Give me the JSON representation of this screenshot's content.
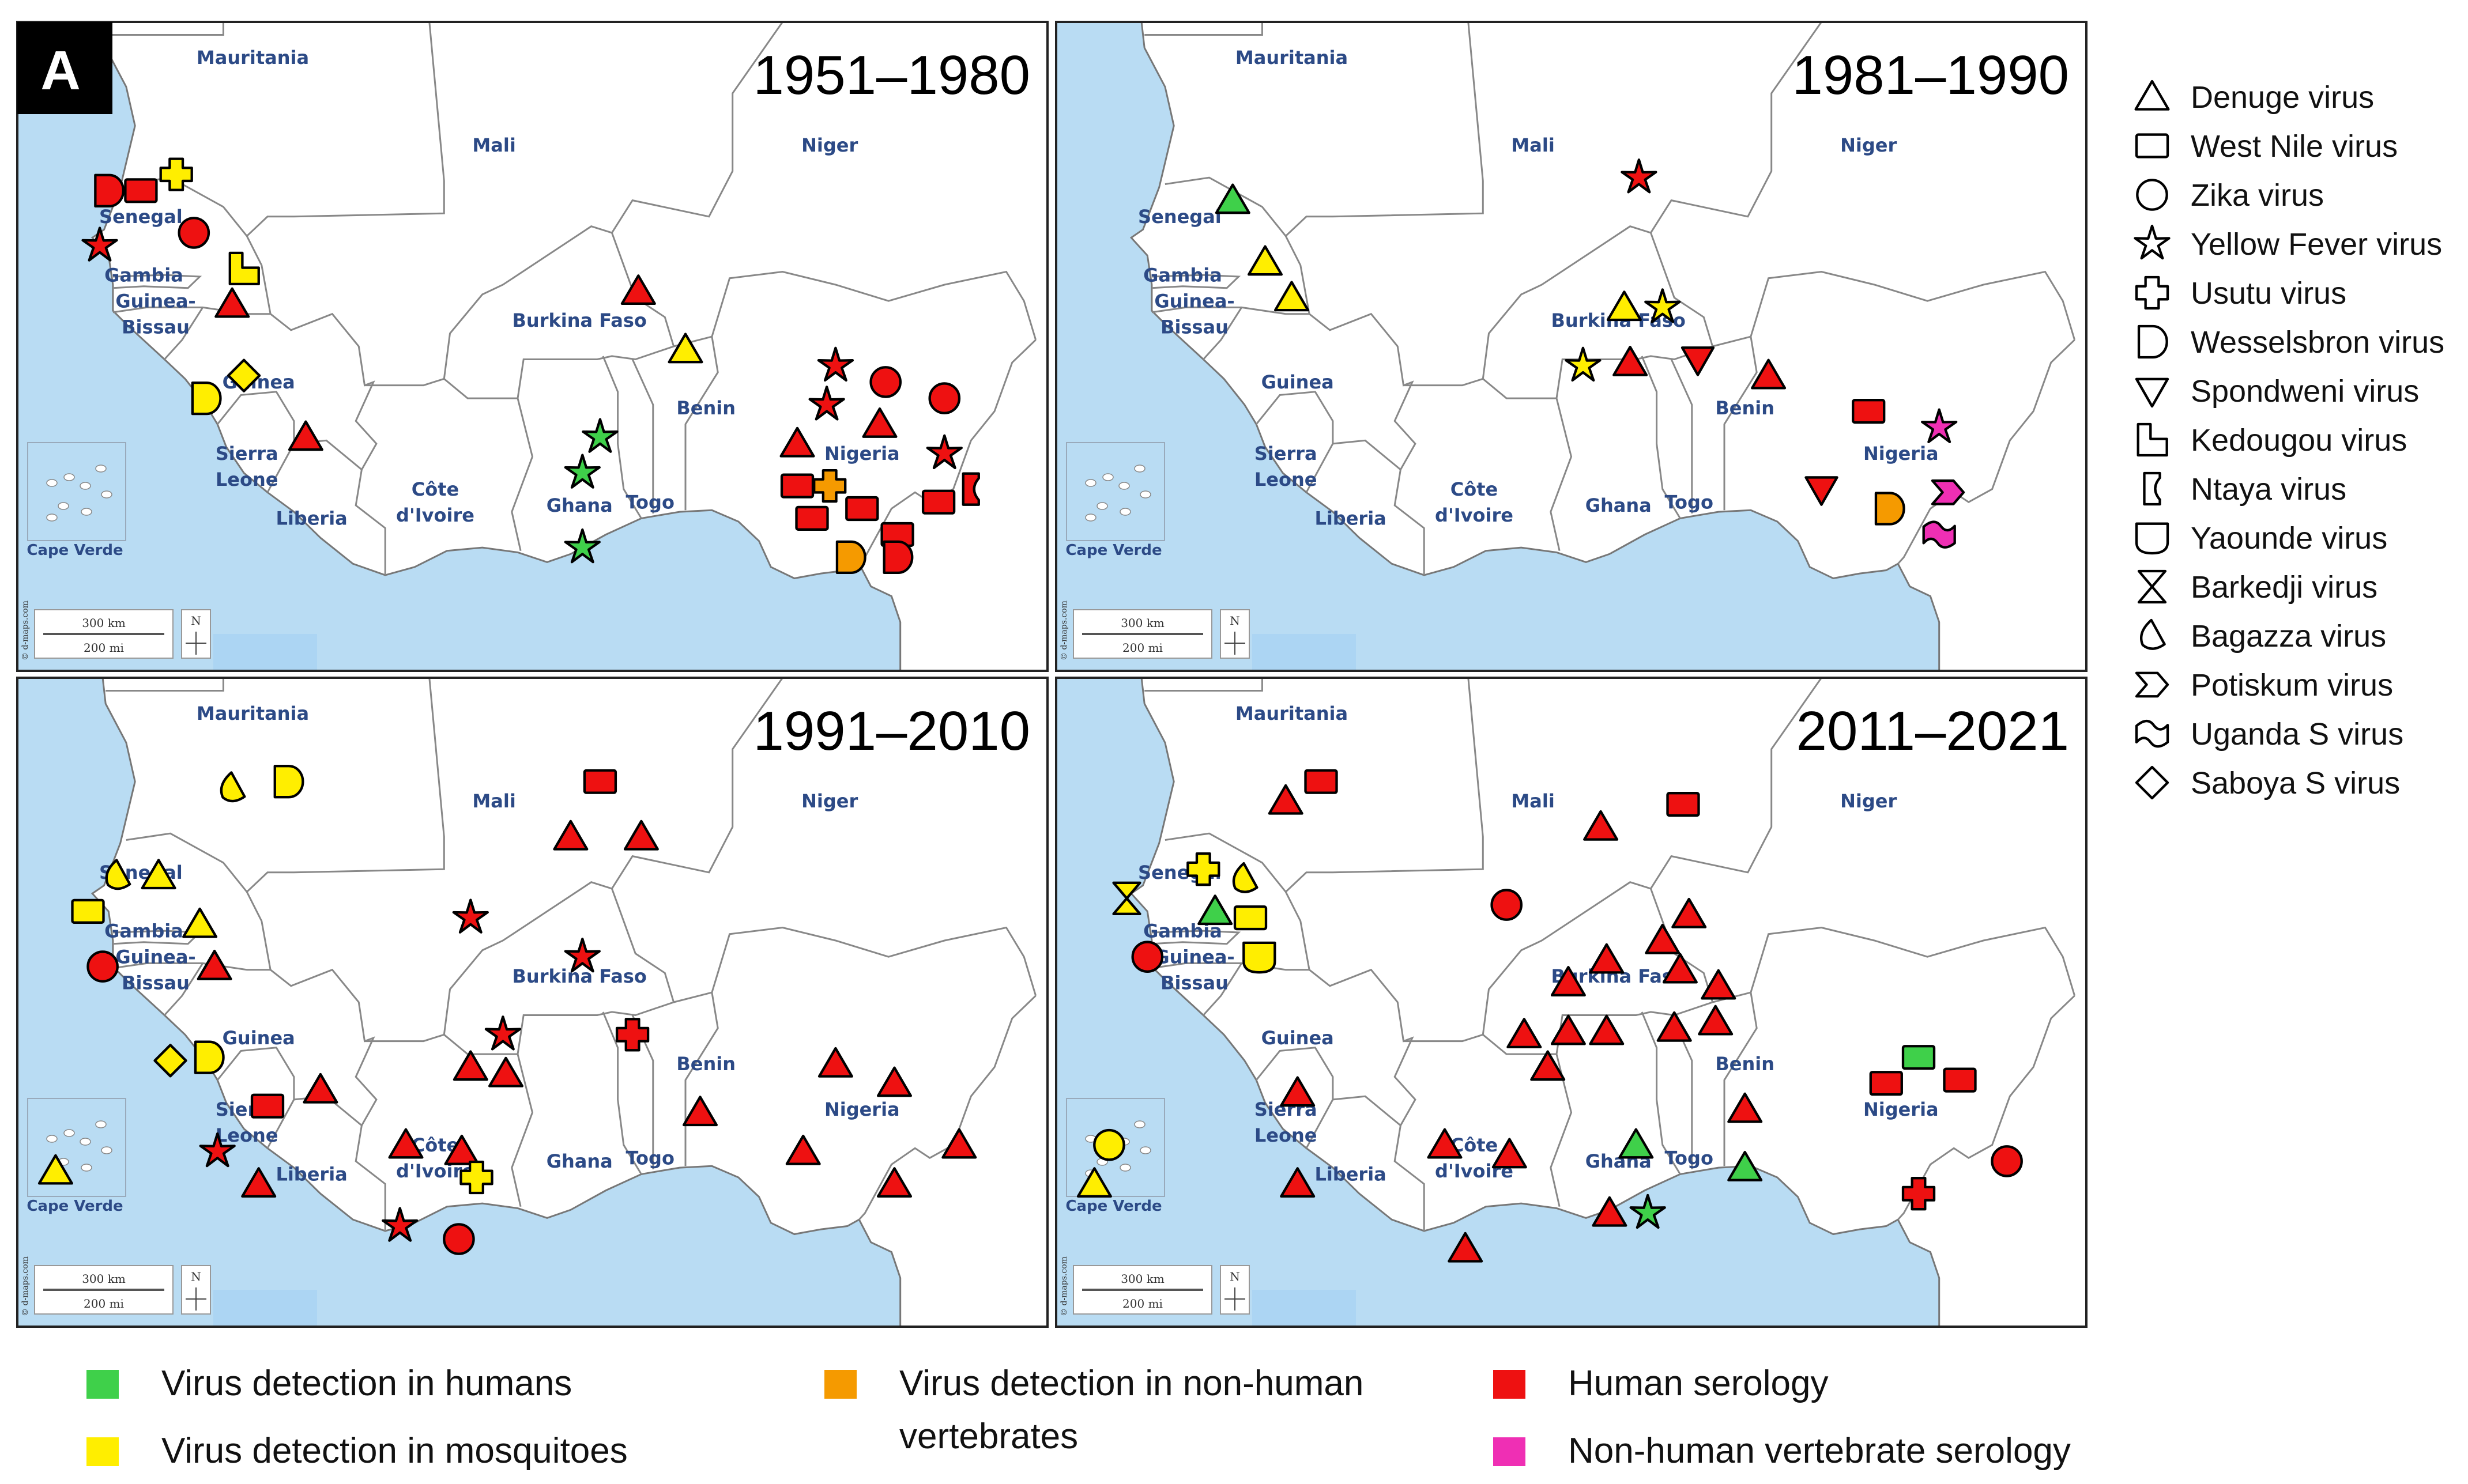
{
  "figure": {
    "panel_label": "A",
    "copyright": "© d-maps.com",
    "scale_km": "300 km",
    "scale_mi": "200 mi",
    "north": "N"
  },
  "colors": {
    "human_detection": "#3fd04a",
    "mosquito_detection": "#ffee00",
    "nonhuman_detection": "#f59a00",
    "human_serology": "#ee1111",
    "nonhuman_serology": "#ef2fb4",
    "sea": "#b9dcf3",
    "land": "#ffffff",
    "border": "#888888",
    "country_label": "#2c4a86"
  },
  "countries": {
    "mauritania": "Mauritania",
    "mali": "Mali",
    "niger": "Niger",
    "senegal": "Senegal",
    "gambia": "Gambia",
    "guinea_bissau_1": "Guinea-",
    "guinea_bissau_2": "Bissau",
    "guinea": "Guinea",
    "burkina_faso": "Burkina Faso",
    "benin": "Benin",
    "nigeria": "Nigeria",
    "sierra_leone_1": "Sierra",
    "sierra_leone_2": "Leone",
    "cote_divoire_1": "Côte",
    "cote_divoire_2": "d'Ivoire",
    "ghana": "Ghana",
    "togo": "Togo",
    "liberia": "Liberia",
    "cape_verde": "Cape Verde"
  },
  "panels": [
    {
      "period": "1951–1980",
      "markers": [
        {
          "shape": "wesselsbron",
          "cat": "human_serology",
          "lon": -16.9,
          "lat": 16.2
        },
        {
          "shape": "square",
          "cat": "human_serology",
          "lon": -15.8,
          "lat": 16.2
        },
        {
          "shape": "cross",
          "cat": "mosquito_detection",
          "lon": -14.6,
          "lat": 16.7
        },
        {
          "shape": "circle",
          "cat": "human_serology",
          "lon": -14.0,
          "lat": 14.9
        },
        {
          "shape": "star",
          "cat": "human_serology",
          "lon": -17.2,
          "lat": 14.5
        },
        {
          "shape": "kedougou",
          "cat": "mosquito_detection",
          "lon": -12.3,
          "lat": 13.8
        },
        {
          "shape": "triangle",
          "cat": "human_serology",
          "lon": -12.7,
          "lat": 12.7
        },
        {
          "shape": "diamond",
          "cat": "mosquito_detection",
          "lon": -12.3,
          "lat": 10.5
        },
        {
          "shape": "wesselsbron",
          "cat": "mosquito_detection",
          "lon": -13.6,
          "lat": 9.8
        },
        {
          "shape": "triangle",
          "cat": "human_serology",
          "lon": -10.2,
          "lat": 8.6
        },
        {
          "shape": "triangle",
          "cat": "human_serology",
          "lon": 1.1,
          "lat": 13.1
        },
        {
          "shape": "triangle",
          "cat": "mosquito_detection",
          "lon": 2.7,
          "lat": 11.3
        },
        {
          "shape": "star",
          "cat": "human_detection",
          "lon": -0.2,
          "lat": 8.6
        },
        {
          "shape": "star",
          "cat": "human_detection",
          "lon": -0.8,
          "lat": 7.5
        },
        {
          "shape": "star",
          "cat": "human_detection",
          "lon": -0.8,
          "lat": 5.2
        },
        {
          "shape": "star",
          "cat": "human_serology",
          "lon": 7.8,
          "lat": 10.8
        },
        {
          "shape": "circle",
          "cat": "human_serology",
          "lon": 9.5,
          "lat": 10.3
        },
        {
          "shape": "circle",
          "cat": "human_serology",
          "lon": 11.5,
          "lat": 9.8
        },
        {
          "shape": "star",
          "cat": "human_serology",
          "lon": 7.5,
          "lat": 9.6
        },
        {
          "shape": "triangle",
          "cat": "human_serology",
          "lon": 9.3,
          "lat": 9.0
        },
        {
          "shape": "triangle",
          "cat": "human_serology",
          "lon": 6.5,
          "lat": 8.4
        },
        {
          "shape": "star",
          "cat": "human_serology",
          "lon": 11.5,
          "lat": 8.1
        },
        {
          "shape": "ntaya",
          "cat": "human_serology",
          "lon": 12.4,
          "lat": 7.0
        },
        {
          "shape": "square",
          "cat": "human_serology",
          "lon": 6.5,
          "lat": 7.1
        },
        {
          "shape": "cross",
          "cat": "nonhuman_detection",
          "lon": 7.6,
          "lat": 7.1
        },
        {
          "shape": "square",
          "cat": "human_serology",
          "lon": 11.3,
          "lat": 6.6
        },
        {
          "shape": "square",
          "cat": "human_serology",
          "lon": 8.7,
          "lat": 6.4
        },
        {
          "shape": "square",
          "cat": "human_serology",
          "lon": 7.0,
          "lat": 6.1
        },
        {
          "shape": "square",
          "cat": "human_serology",
          "lon": 9.9,
          "lat": 5.6
        },
        {
          "shape": "wesselsbron",
          "cat": "nonhuman_detection",
          "lon": 8.3,
          "lat": 4.9
        },
        {
          "shape": "wesselsbron",
          "cat": "human_serology",
          "lon": 9.9,
          "lat": 4.9
        }
      ]
    },
    {
      "period": "1981–1990",
      "markers": [
        {
          "shape": "triangle",
          "cat": "human_detection",
          "lon": -14.0,
          "lat": 15.9
        },
        {
          "shape": "triangle",
          "cat": "mosquito_detection",
          "lon": -12.9,
          "lat": 14.0
        },
        {
          "shape": "triangle",
          "cat": "mosquito_detection",
          "lon": -12.0,
          "lat": 12.9
        },
        {
          "shape": "star",
          "cat": "human_serology",
          "lon": -0.2,
          "lat": 16.6
        },
        {
          "shape": "triangle",
          "cat": "mosquito_detection",
          "lon": -0.7,
          "lat": 12.6
        },
        {
          "shape": "star",
          "cat": "mosquito_detection",
          "lon": 0.6,
          "lat": 12.6
        },
        {
          "shape": "star",
          "cat": "mosquito_detection",
          "lon": -2.1,
          "lat": 10.8
        },
        {
          "shape": "triangle",
          "cat": "human_serology",
          "lon": -0.5,
          "lat": 10.9
        },
        {
          "shape": "spondweni",
          "cat": "human_serology",
          "lon": 1.8,
          "lat": 11.0
        },
        {
          "shape": "triangle",
          "cat": "human_serology",
          "lon": 4.2,
          "lat": 10.5
        },
        {
          "shape": "square",
          "cat": "human_serology",
          "lon": 7.6,
          "lat": 9.4
        },
        {
          "shape": "star",
          "cat": "nonhuman_serology",
          "lon": 10.0,
          "lat": 8.9
        },
        {
          "shape": "spondweni",
          "cat": "human_serology",
          "lon": 6.0,
          "lat": 7.0
        },
        {
          "shape": "potiskum",
          "cat": "nonhuman_serology",
          "lon": 10.3,
          "lat": 6.9
        },
        {
          "shape": "wesselsbron",
          "cat": "nonhuman_detection",
          "lon": 8.3,
          "lat": 6.4
        },
        {
          "shape": "uganda",
          "cat": "nonhuman_serology",
          "lon": 10.0,
          "lat": 5.6
        }
      ]
    },
    {
      "period": "1991–2010",
      "markers": [
        {
          "shape": "bagazza",
          "cat": "mosquito_detection",
          "lon": -12.7,
          "lat": 18.0
        },
        {
          "shape": "wesselsbron",
          "cat": "mosquito_detection",
          "lon": -10.8,
          "lat": 18.2
        },
        {
          "shape": "square",
          "cat": "human_serology",
          "lon": -0.2,
          "lat": 18.2
        },
        {
          "shape": "triangle",
          "cat": "human_serology",
          "lon": -1.2,
          "lat": 16.5
        },
        {
          "shape": "triangle",
          "cat": "human_serology",
          "lon": 1.2,
          "lat": 16.5
        },
        {
          "shape": "bagazza",
          "cat": "mosquito_detection",
          "lon": -16.6,
          "lat": 15.3
        },
        {
          "shape": "triangle",
          "cat": "mosquito_detection",
          "lon": -15.2,
          "lat": 15.3
        },
        {
          "shape": "square",
          "cat": "mosquito_detection",
          "lon": -17.6,
          "lat": 14.2
        },
        {
          "shape": "triangle",
          "cat": "mosquito_detection",
          "lon": -13.8,
          "lat": 13.8
        },
        {
          "shape": "circle",
          "cat": "human_serology",
          "lon": -17.1,
          "lat": 12.5
        },
        {
          "shape": "triangle",
          "cat": "human_serology",
          "lon": -13.3,
          "lat": 12.5
        },
        {
          "shape": "star",
          "cat": "human_serology",
          "lon": -4.6,
          "lat": 14.0
        },
        {
          "shape": "star",
          "cat": "human_serology",
          "lon": -0.8,
          "lat": 12.8
        },
        {
          "shape": "star",
          "cat": "human_serology",
          "lon": -3.5,
          "lat": 10.4
        },
        {
          "shape": "cross",
          "cat": "human_serology",
          "lon": 0.9,
          "lat": 10.4
        },
        {
          "shape": "diamond",
          "cat": "mosquito_detection",
          "lon": -14.8,
          "lat": 9.6
        },
        {
          "shape": "wesselsbron",
          "cat": "mosquito_detection",
          "lon": -13.5,
          "lat": 9.7
        },
        {
          "shape": "triangle",
          "cat": "human_serology",
          "lon": -9.7,
          "lat": 8.7
        },
        {
          "shape": "square",
          "cat": "human_serology",
          "lon": -11.5,
          "lat": 8.2
        },
        {
          "shape": "triangle",
          "cat": "human_serology",
          "lon": -4.6,
          "lat": 9.4
        },
        {
          "shape": "triangle",
          "cat": "human_serology",
          "lon": -3.4,
          "lat": 9.2
        },
        {
          "shape": "star",
          "cat": "human_serology",
          "lon": -13.2,
          "lat": 6.8
        },
        {
          "shape": "triangle",
          "cat": "mosquito_detection",
          "lon": -18.7,
          "lat": 6.2
        },
        {
          "shape": "triangle",
          "cat": "human_serology",
          "lon": -11.8,
          "lat": 5.8
        },
        {
          "shape": "triangle",
          "cat": "human_serology",
          "lon": -6.8,
          "lat": 7.0
        },
        {
          "shape": "triangle",
          "cat": "human_serology",
          "lon": -4.9,
          "lat": 6.8
        },
        {
          "shape": "cross",
          "cat": "mosquito_detection",
          "lon": -4.4,
          "lat": 6.0
        },
        {
          "shape": "star",
          "cat": "human_serology",
          "lon": -7.0,
          "lat": 4.5
        },
        {
          "shape": "circle",
          "cat": "human_serology",
          "lon": -5.0,
          "lat": 4.1
        },
        {
          "shape": "triangle",
          "cat": "human_serology",
          "lon": 3.2,
          "lat": 8.0
        },
        {
          "shape": "triangle",
          "cat": "human_serology",
          "lon": 7.8,
          "lat": 9.5
        },
        {
          "shape": "triangle",
          "cat": "human_serology",
          "lon": 9.8,
          "lat": 8.9
        },
        {
          "shape": "triangle",
          "cat": "human_serology",
          "lon": 6.7,
          "lat": 6.8
        },
        {
          "shape": "triangle",
          "cat": "human_serology",
          "lon": 12.0,
          "lat": 7.0
        },
        {
          "shape": "triangle",
          "cat": "human_serology",
          "lon": 9.8,
          "lat": 5.8
        }
      ]
    },
    {
      "period": "2011–2021",
      "markers": [
        {
          "shape": "triangle",
          "cat": "human_serology",
          "lon": -12.2,
          "lat": 17.6
        },
        {
          "shape": "square",
          "cat": "human_serology",
          "lon": -11.0,
          "lat": 18.2
        },
        {
          "shape": "triangle",
          "cat": "human_serology",
          "lon": -1.5,
          "lat": 16.8
        },
        {
          "shape": "square",
          "cat": "human_serology",
          "lon": 1.3,
          "lat": 17.5
        },
        {
          "shape": "cross",
          "cat": "mosquito_detection",
          "lon": -15.0,
          "lat": 15.5
        },
        {
          "shape": "bagazza",
          "cat": "mosquito_detection",
          "lon": -13.6,
          "lat": 15.2
        },
        {
          "shape": "barkedji",
          "cat": "mosquito_detection",
          "lon": -17.6,
          "lat": 14.6
        },
        {
          "shape": "triangle",
          "cat": "human_detection",
          "lon": -14.6,
          "lat": 14.2
        },
        {
          "shape": "square",
          "cat": "mosquito_detection",
          "lon": -13.4,
          "lat": 14.0
        },
        {
          "shape": "circle",
          "cat": "human_serology",
          "lon": -16.9,
          "lat": 12.8
        },
        {
          "shape": "yaounde",
          "cat": "mosquito_detection",
          "lon": -13.1,
          "lat": 12.8
        },
        {
          "shape": "circle",
          "cat": "human_serology",
          "lon": -4.7,
          "lat": 14.4
        },
        {
          "shape": "triangle",
          "cat": "human_serology",
          "lon": 1.5,
          "lat": 14.1
        },
        {
          "shape": "triangle",
          "cat": "human_serology",
          "lon": 0.6,
          "lat": 13.3
        },
        {
          "shape": "triangle",
          "cat": "human_serology",
          "lon": -1.3,
          "lat": 12.7
        },
        {
          "shape": "triangle",
          "cat": "human_serology",
          "lon": -2.6,
          "lat": 12.0
        },
        {
          "shape": "triangle",
          "cat": "human_serology",
          "lon": 1.2,
          "lat": 12.4
        },
        {
          "shape": "triangle",
          "cat": "human_serology",
          "lon": 2.5,
          "lat": 11.9
        },
        {
          "shape": "triangle",
          "cat": "human_serology",
          "lon": -4.1,
          "lat": 10.4
        },
        {
          "shape": "triangle",
          "cat": "human_serology",
          "lon": -2.6,
          "lat": 10.5
        },
        {
          "shape": "triangle",
          "cat": "human_serology",
          "lon": -1.3,
          "lat": 10.5
        },
        {
          "shape": "triangle",
          "cat": "human_serology",
          "lon": 1.0,
          "lat": 10.6
        },
        {
          "shape": "triangle",
          "cat": "human_serology",
          "lon": 2.4,
          "lat": 10.8
        },
        {
          "shape": "triangle",
          "cat": "human_serology",
          "lon": -3.3,
          "lat": 9.4
        },
        {
          "shape": "triangle",
          "cat": "human_serology",
          "lon": -11.8,
          "lat": 8.6
        },
        {
          "shape": "triangle",
          "cat": "human_serology",
          "lon": -11.8,
          "lat": 5.8
        },
        {
          "shape": "circle",
          "cat": "mosquito_detection",
          "lon": -18.2,
          "lat": 7.0
        },
        {
          "shape": "triangle",
          "cat": "mosquito_detection",
          "lon": -18.7,
          "lat": 5.8
        },
        {
          "shape": "triangle",
          "cat": "human_serology",
          "lon": -6.8,
          "lat": 7.0
        },
        {
          "shape": "triangle",
          "cat": "human_serology",
          "lon": -4.6,
          "lat": 6.7
        },
        {
          "shape": "triangle",
          "cat": "human_serology",
          "lon": -6.1,
          "lat": 3.8
        },
        {
          "shape": "triangle",
          "cat": "human_detection",
          "lon": -0.3,
          "lat": 7.0
        },
        {
          "shape": "triangle",
          "cat": "human_serology",
          "lon": -1.2,
          "lat": 4.9
        },
        {
          "shape": "star",
          "cat": "human_detection",
          "lon": 0.1,
          "lat": 4.9
        },
        {
          "shape": "triangle",
          "cat": "human_serology",
          "lon": 3.4,
          "lat": 8.1
        },
        {
          "shape": "triangle",
          "cat": "human_detection",
          "lon": 3.4,
          "lat": 6.3
        },
        {
          "shape": "square",
          "cat": "human_detection",
          "lon": 9.3,
          "lat": 9.7
        },
        {
          "shape": "square",
          "cat": "human_serology",
          "lon": 8.2,
          "lat": 8.9
        },
        {
          "shape": "square",
          "cat": "human_serology",
          "lon": 10.7,
          "lat": 9.0
        },
        {
          "shape": "circle",
          "cat": "human_serology",
          "lon": 12.3,
          "lat": 6.5
        },
        {
          "shape": "cross",
          "cat": "human_serology",
          "lon": 9.3,
          "lat": 5.5
        }
      ]
    }
  ],
  "virus_legend": [
    {
      "shape": "triangle",
      "label": "Denuge virus"
    },
    {
      "shape": "square",
      "label": "West Nile virus"
    },
    {
      "shape": "circle",
      "label": "Zika virus"
    },
    {
      "shape": "star",
      "label": "Yellow Fever virus"
    },
    {
      "shape": "cross",
      "label": "Usutu virus"
    },
    {
      "shape": "wesselsbron",
      "label": "Wesselsbron virus"
    },
    {
      "shape": "spondweni",
      "label": "Spondweni virus"
    },
    {
      "shape": "kedougou",
      "label": "Kedougou virus"
    },
    {
      "shape": "ntaya",
      "label": "Ntaya virus"
    },
    {
      "shape": "yaounde",
      "label": "Yaounde virus"
    },
    {
      "shape": "barkedji",
      "label": "Barkedji virus"
    },
    {
      "shape": "bagazza",
      "label": "Bagazza virus"
    },
    {
      "shape": "potiskum",
      "label": "Potiskum virus"
    },
    {
      "shape": "uganda",
      "label": "Uganda S virus"
    },
    {
      "shape": "diamond",
      "label": "Saboya S virus"
    }
  ],
  "color_legend": [
    {
      "cat": "human_detection",
      "lines": [
        "Virus detection in humans"
      ]
    },
    {
      "cat": "mosquito_detection",
      "lines": [
        "Virus detection in mosquitoes"
      ]
    },
    {
      "cat": "nonhuman_detection",
      "lines": [
        "Virus detection in non-human",
        "vertebrates"
      ]
    },
    {
      "cat": "human_serology",
      "lines": [
        "Human serology"
      ]
    },
    {
      "cat": "nonhuman_serology",
      "lines": [
        "Non-human vertebrate serology"
      ]
    }
  ]
}
